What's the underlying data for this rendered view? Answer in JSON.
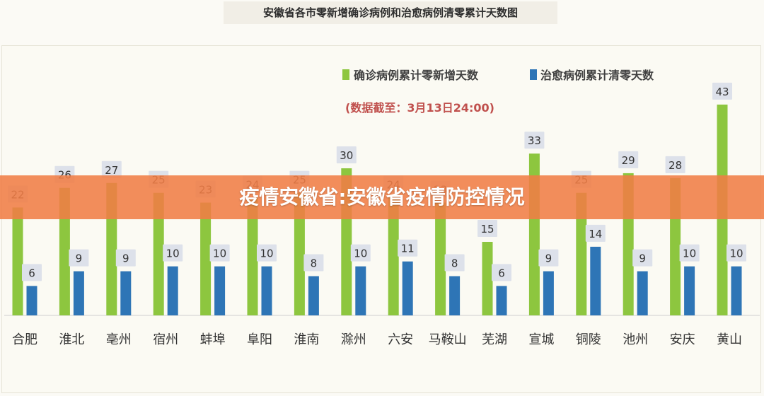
{
  "header": {
    "title": "安徽省各市零新增确诊病例和治愈病例清零累计天数图"
  },
  "banner": {
    "text": "疫情安徽省:安徽省疫情防控情况"
  },
  "chart_data": {
    "type": "bar",
    "title": "安徽省各市零新增确诊病例和治愈病例清零累计天数图",
    "note": "(数据截至：3月13日24:00)",
    "categories": [
      "合肥",
      "淮北",
      "亳州",
      "宿州",
      "蚌埠",
      "阜阳",
      "淮南",
      "滁州",
      "六安",
      "马鞍山",
      "芜湖",
      "宣城",
      "铜陵",
      "池州",
      "安庆",
      "黄山"
    ],
    "series": [
      {
        "name": "确诊病例累计零新增天数",
        "color": "#8dc63f",
        "values": [
          22,
          26,
          27,
          25,
          23,
          24,
          25,
          30,
          24,
          23,
          15,
          33,
          25,
          29,
          28,
          43
        ]
      },
      {
        "name": "治愈病例累计清零天数",
        "color": "#2e75b6",
        "values": [
          6,
          9,
          9,
          10,
          10,
          10,
          8,
          10,
          11,
          8,
          6,
          9,
          14,
          9,
          10,
          10
        ]
      }
    ],
    "ylim": [
      0,
      45
    ],
    "grid": false,
    "legend_position": "top-right",
    "xlabel": "",
    "ylabel": ""
  },
  "colors": {
    "label_box": "#dde1ea",
    "note_color": "#c0504d",
    "banner": "#f07d46"
  }
}
